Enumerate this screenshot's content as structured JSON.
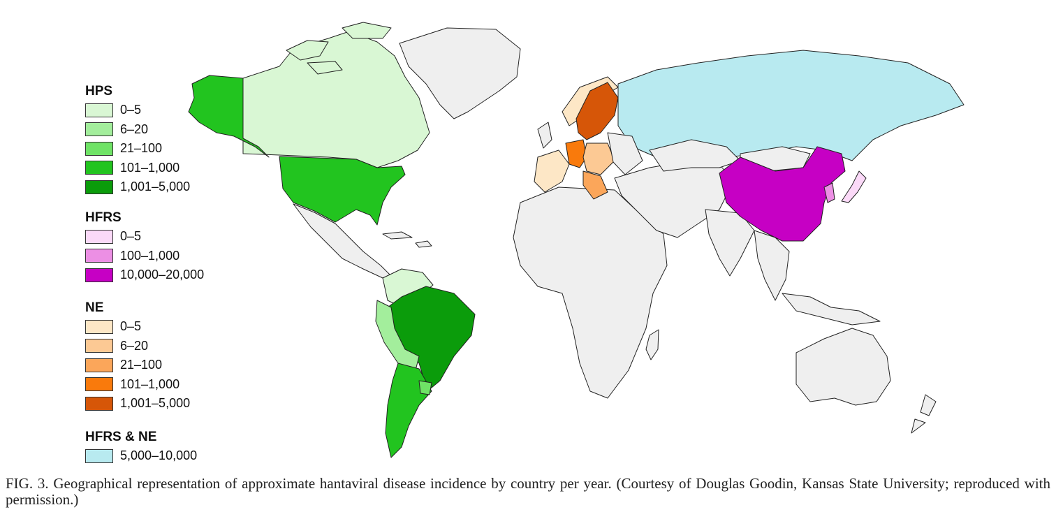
{
  "legend": {
    "hps": {
      "title": "HPS",
      "items": [
        {
          "label": "0–5",
          "color": "#d9f7d4"
        },
        {
          "label": "6–20",
          "color": "#a3ee9c"
        },
        {
          "label": "21–100",
          "color": "#6fe366"
        },
        {
          "label": "101–1,000",
          "color": "#22c41f"
        },
        {
          "label": "1,001–5,000",
          "color": "#0b9c0b"
        }
      ]
    },
    "hfrs": {
      "title": "HFRS",
      "items": [
        {
          "label": "0–5",
          "color": "#fbd9f8"
        },
        {
          "label": "100–1,000",
          "color": "#ec8fe4"
        },
        {
          "label": "10,000–20,000",
          "color": "#c600c4"
        }
      ]
    },
    "ne": {
      "title": "NE",
      "items": [
        {
          "label": "0–5",
          "color": "#fde7c6"
        },
        {
          "label": "6–20",
          "color": "#fcc994"
        },
        {
          "label": "21–100",
          "color": "#fba65a"
        },
        {
          "label": "101–1,000",
          "color": "#f97a0c"
        },
        {
          "label": "1,001–5,000",
          "color": "#d65608"
        }
      ]
    },
    "hfrs_ne": {
      "title": "HFRS & NE",
      "items": [
        {
          "label": "5,000–10,000",
          "color": "#b8eaf0"
        }
      ]
    }
  },
  "colors": {
    "no_data": "#efefef",
    "border": "#222222"
  },
  "caption": "FIG. 3. Geographical representation of approximate hantaviral disease incidence by country per year. (Courtesy of Douglas Goodin, Kansas State University; reproduced with permission.)"
}
